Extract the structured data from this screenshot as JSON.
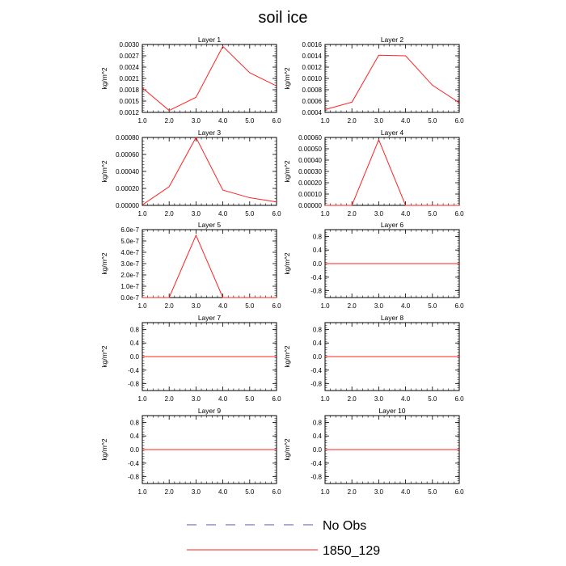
{
  "figure": {
    "title": "soil ice",
    "y_unit_label": "kg/m^2"
  },
  "legend": [
    {
      "label": "No Obs",
      "color": "#5555aa",
      "dashed": true
    },
    {
      "label": "1850_129",
      "color": "#ff2222",
      "dashed": false
    }
  ],
  "chart_data": [
    {
      "type": "line",
      "title": "Layer 1",
      "ylabel": "kg/m^2",
      "x": [
        1,
        2,
        3,
        4,
        5,
        6
      ],
      "xticks": [
        "1.0",
        "2.0",
        "3.0",
        "4.0",
        "5.0",
        "6.0"
      ],
      "xlim": [
        1,
        6
      ],
      "ylim": [
        0.0012,
        0.003
      ],
      "yticks": [
        "0.0012",
        "0.0015",
        "0.0018",
        "0.0021",
        "0.0024",
        "0.0027",
        "0.0030"
      ],
      "ytick_values": [
        0.0012,
        0.0015,
        0.0018,
        0.0021,
        0.0024,
        0.0027,
        0.003
      ],
      "series": [
        {
          "name": "1850_129",
          "values": [
            0.00185,
            0.00125,
            0.0016,
            0.00295,
            0.00225,
            0.0019
          ]
        }
      ]
    },
    {
      "type": "line",
      "title": "Layer 2",
      "ylabel": "kg/m^2",
      "x": [
        1,
        2,
        3,
        4,
        5,
        6
      ],
      "xticks": [
        "1.0",
        "2.0",
        "3.0",
        "4.0",
        "5.0",
        "6.0"
      ],
      "xlim": [
        1,
        6
      ],
      "ylim": [
        0.0004,
        0.0016
      ],
      "yticks": [
        "0.0004",
        "0.0006",
        "0.0008",
        "0.0010",
        "0.0012",
        "0.0014",
        "0.0016"
      ],
      "ytick_values": [
        0.0004,
        0.0006,
        0.0008,
        0.001,
        0.0012,
        0.0014,
        0.0016
      ],
      "series": [
        {
          "name": "1850_129",
          "values": [
            0.00045,
            0.00058,
            0.00141,
            0.0014,
            0.00088,
            0.00057
          ]
        }
      ]
    },
    {
      "type": "line",
      "title": "Layer 3",
      "ylabel": "kg/m^2",
      "x": [
        1,
        2,
        3,
        4,
        5,
        6
      ],
      "xticks": [
        "1.0",
        "2.0",
        "3.0",
        "4.0",
        "5.0",
        "6.0"
      ],
      "xlim": [
        1,
        6
      ],
      "ylim": [
        0,
        0.0008
      ],
      "yticks": [
        "0.00000",
        "0.00020",
        "0.00040",
        "0.00060",
        "0.00080"
      ],
      "ytick_values": [
        0,
        0.0002,
        0.0004,
        0.0006,
        0.0008
      ],
      "series": [
        {
          "name": "1850_129",
          "values": [
            5e-06,
            0.00022,
            0.0008,
            0.00018,
            9e-05,
            4e-05
          ]
        }
      ]
    },
    {
      "type": "line",
      "title": "Layer 4",
      "ylabel": "kg/m^2",
      "x": [
        1,
        2,
        3,
        4,
        5,
        6
      ],
      "xticks": [
        "1.0",
        "2.0",
        "3.0",
        "4.0",
        "5.0",
        "6.0"
      ],
      "xlim": [
        1,
        6
      ],
      "ylim": [
        0,
        0.0006
      ],
      "yticks": [
        "0.00000",
        "0.00010",
        "0.00020",
        "0.00030",
        "0.00040",
        "0.00050",
        "0.00060"
      ],
      "ytick_values": [
        0,
        0.0001,
        0.0002,
        0.0003,
        0.0004,
        0.0005,
        0.0006
      ],
      "series": [
        {
          "name": "1850_129",
          "values": [
            0,
            0,
            0.00058,
            0,
            0,
            0
          ]
        }
      ]
    },
    {
      "type": "line",
      "title": "Layer 5",
      "ylabel": "kg/m^2",
      "x": [
        1,
        2,
        3,
        4,
        5,
        6
      ],
      "xticks": [
        "1.0",
        "2.0",
        "3.0",
        "4.0",
        "5.0",
        "6.0"
      ],
      "xlim": [
        1,
        6
      ],
      "ylim": [
        0,
        6e-07
      ],
      "yticks": [
        "0.0e-7",
        "1.0e-7",
        "2.0e-7",
        "3.0e-7",
        "4.0e-7",
        "5.0e-7",
        "6.0e-7"
      ],
      "ytick_values": [
        0,
        1e-07,
        2e-07,
        3e-07,
        4e-07,
        5e-07,
        6e-07
      ],
      "series": [
        {
          "name": "1850_129",
          "values": [
            0,
            0,
            5.5e-07,
            0,
            0,
            0
          ]
        }
      ]
    },
    {
      "type": "line",
      "title": "Layer 6",
      "ylabel": "kg/m^2",
      "x": [
        1,
        2,
        3,
        4,
        5,
        6
      ],
      "xticks": [
        "1.0",
        "2.0",
        "3.0",
        "4.0",
        "5.0",
        "6.0"
      ],
      "xlim": [
        1,
        6
      ],
      "ylim": [
        -1,
        1
      ],
      "yticks": [
        "-0.8",
        "-0.4",
        "0.0",
        "0.4",
        "0.8"
      ],
      "ytick_values": [
        -0.8,
        -0.4,
        0,
        0.4,
        0.8
      ],
      "series": [
        {
          "name": "1850_129",
          "values": [
            0,
            0,
            0,
            0,
            0,
            0
          ]
        }
      ]
    },
    {
      "type": "line",
      "title": "Layer 7",
      "ylabel": "kg/m^2",
      "x": [
        1,
        2,
        3,
        4,
        5,
        6
      ],
      "xticks": [
        "1.0",
        "2.0",
        "3.0",
        "4.0",
        "5.0",
        "6.0"
      ],
      "xlim": [
        1,
        6
      ],
      "ylim": [
        -1,
        1
      ],
      "yticks": [
        "-0.8",
        "-0.4",
        "0.0",
        "0.4",
        "0.8"
      ],
      "ytick_values": [
        -0.8,
        -0.4,
        0,
        0.4,
        0.8
      ],
      "series": [
        {
          "name": "1850_129",
          "values": [
            0,
            0,
            0,
            0,
            0,
            0
          ]
        }
      ]
    },
    {
      "type": "line",
      "title": "Layer 8",
      "ylabel": "kg/m^2",
      "x": [
        1,
        2,
        3,
        4,
        5,
        6
      ],
      "xticks": [
        "1.0",
        "2.0",
        "3.0",
        "4.0",
        "5.0",
        "6.0"
      ],
      "xlim": [
        1,
        6
      ],
      "ylim": [
        -1,
        1
      ],
      "yticks": [
        "-0.8",
        "-0.4",
        "0.0",
        "0.4",
        "0.8"
      ],
      "ytick_values": [
        -0.8,
        -0.4,
        0,
        0.4,
        0.8
      ],
      "series": [
        {
          "name": "1850_129",
          "values": [
            0,
            0,
            0,
            0,
            0,
            0
          ]
        }
      ]
    },
    {
      "type": "line",
      "title": "Layer 9",
      "ylabel": "kg/m^2",
      "x": [
        1,
        2,
        3,
        4,
        5,
        6
      ],
      "xticks": [
        "1.0",
        "2.0",
        "3.0",
        "4.0",
        "5.0",
        "6.0"
      ],
      "xlim": [
        1,
        6
      ],
      "ylim": [
        -1,
        1
      ],
      "yticks": [
        "-0.8",
        "-0.4",
        "0.0",
        "0.4",
        "0.8"
      ],
      "ytick_values": [
        -0.8,
        -0.4,
        0,
        0.4,
        0.8
      ],
      "series": [
        {
          "name": "1850_129",
          "values": [
            0,
            0,
            0,
            0,
            0,
            0
          ]
        }
      ]
    },
    {
      "type": "line",
      "title": "Layer 10",
      "ylabel": "kg/m^2",
      "x": [
        1,
        2,
        3,
        4,
        5,
        6
      ],
      "xticks": [
        "1.0",
        "2.0",
        "3.0",
        "4.0",
        "5.0",
        "6.0"
      ],
      "xlim": [
        1,
        6
      ],
      "ylim": [
        -1,
        1
      ],
      "yticks": [
        "-0.8",
        "-0.4",
        "0.0",
        "0.4",
        "0.8"
      ],
      "ytick_values": [
        -0.8,
        -0.4,
        0,
        0.4,
        0.8
      ],
      "series": [
        {
          "name": "1850_129",
          "values": [
            0,
            0,
            0,
            0,
            0,
            0
          ]
        }
      ]
    }
  ]
}
